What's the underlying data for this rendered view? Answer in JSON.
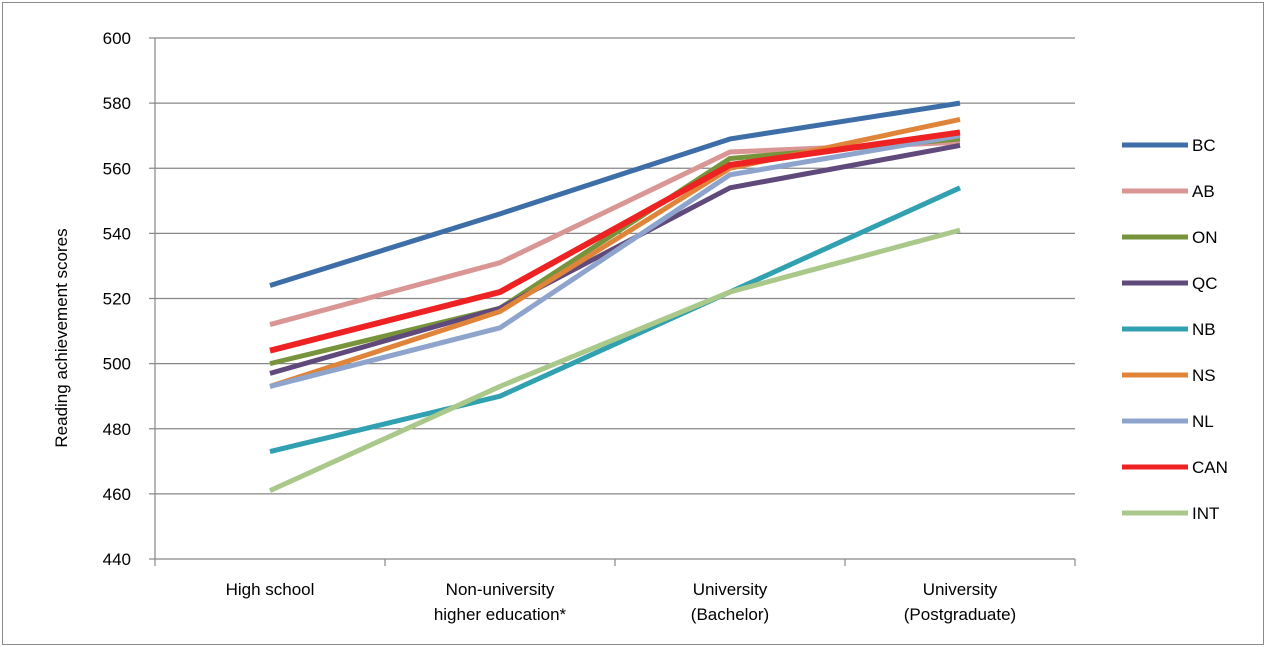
{
  "chart_data": {
    "type": "line",
    "title": "",
    "xlabel": "",
    "ylabel": "Reading achievement scores",
    "ylim": [
      440,
      600
    ],
    "yticks": [
      "440",
      "460",
      "480",
      "500",
      "520",
      "540",
      "560",
      "580",
      "600"
    ],
    "grid": "horizontal",
    "legend_position": "right",
    "categories": [
      [
        "High school"
      ],
      [
        "Non-university",
        "higher education*"
      ],
      [
        "University",
        "(Bachelor)"
      ],
      [
        "University",
        "(Postgraduate)"
      ]
    ],
    "series": [
      {
        "name": "BC",
        "color": "#3e6ea8",
        "values": [
          524,
          546,
          569,
          580
        ]
      },
      {
        "name": "AB",
        "color": "#d99694",
        "values": [
          512,
          531,
          565,
          568
        ]
      },
      {
        "name": "ON",
        "color": "#77933c",
        "values": [
          500,
          517,
          563,
          569
        ]
      },
      {
        "name": "QC",
        "color": "#604a7b",
        "values": [
          497,
          517,
          554,
          567
        ]
      },
      {
        "name": "NB",
        "color": "#31a0b0",
        "values": [
          473,
          490,
          522,
          554
        ]
      },
      {
        "name": "NS",
        "color": "#e0843a",
        "values": [
          493,
          516,
          560,
          575
        ]
      },
      {
        "name": "NL",
        "color": "#8ea4cc",
        "values": [
          493,
          511,
          558,
          570
        ]
      },
      {
        "name": "CAN",
        "color": "#ee2222",
        "values": [
          504,
          522,
          561,
          571
        ]
      },
      {
        "name": "INT",
        "color": "#a9c88a",
        "values": [
          461,
          493,
          522,
          541
        ]
      }
    ]
  }
}
